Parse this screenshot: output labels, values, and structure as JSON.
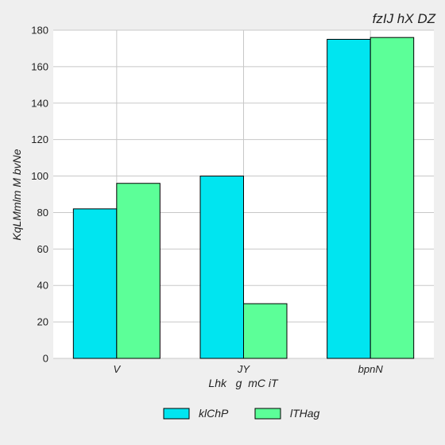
{
  "chart_data": {
    "type": "bar",
    "title": "fzIJ hX DZ",
    "xlabel": "Lhk   g  mC iT",
    "ylabel": "KqLMmlm M bvNe",
    "categories": [
      "V",
      "JY",
      "bpnN"
    ],
    "series": [
      {
        "name": "klChP",
        "values": [
          82,
          100,
          175
        ],
        "color": "#00e5f0"
      },
      {
        "name": "lTHag",
        "values": [
          96,
          30,
          176
        ],
        "color": "#5cff98"
      }
    ],
    "ylim": [
      0,
      180
    ],
    "yticks": [
      0,
      20,
      40,
      60,
      80,
      100,
      120,
      140,
      160,
      180
    ],
    "grid": true,
    "legend_position": "bottom-center"
  }
}
